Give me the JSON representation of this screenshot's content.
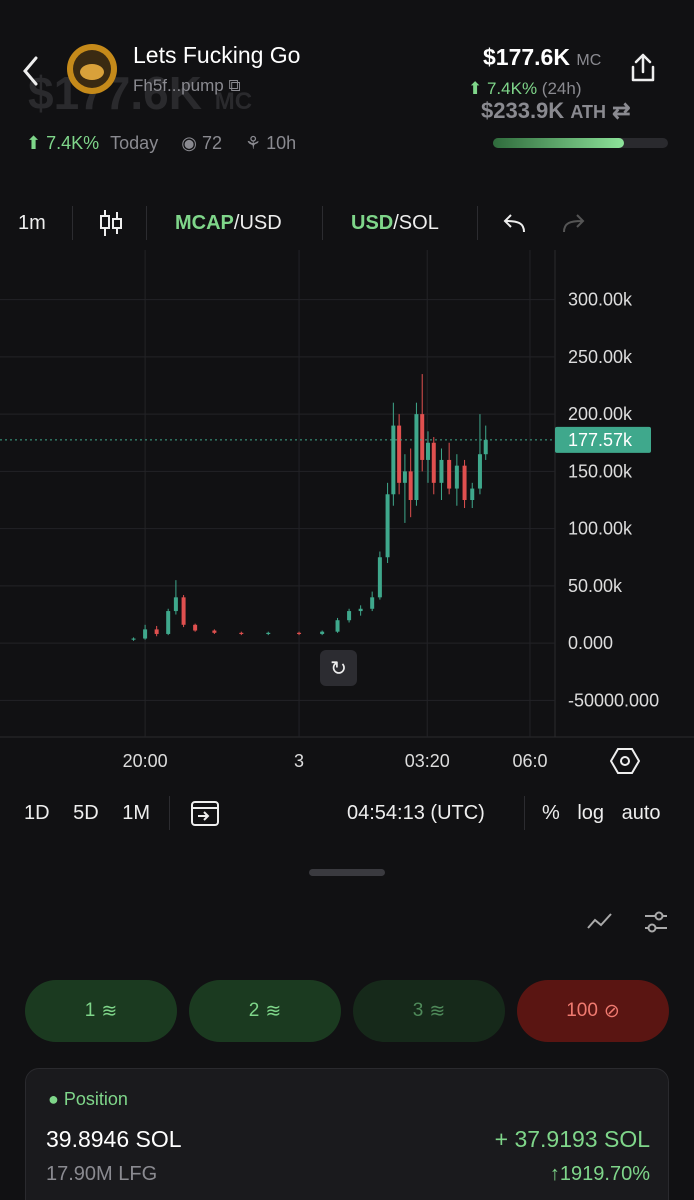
{
  "header": {
    "name": "Lets Fucking Go",
    "address": "Fh5f...pump",
    "mc": "$177.6K",
    "mc_unit": "MC",
    "change": "7.4K%",
    "change_period": "(24h)",
    "ath": "$233.9K",
    "ath_unit": "ATH",
    "ath_progress_percent": 75
  },
  "stats": {
    "today_change": "7.4K%",
    "today_label": "Today",
    "holders": "72",
    "age": "10h"
  },
  "toolbar": {
    "interval": "1m",
    "mcap": "MCAP",
    "mcap_unit": "/USD",
    "usd": "USD",
    "sol": "/SOL"
  },
  "chart_data": {
    "type": "candlestick",
    "x": [
      -0.3,
      0.0,
      0.3,
      0.6,
      0.8,
      1.0,
      1.3,
      1.8,
      2.5,
      3.2,
      4.0,
      4.6,
      5.0,
      5.3,
      5.6,
      5.9,
      6.1,
      6.3,
      6.45,
      6.6,
      6.75,
      6.9,
      7.05,
      7.2,
      7.35,
      7.5,
      7.7,
      7.9,
      8.1,
      8.3,
      8.5,
      8.7,
      8.85
    ],
    "open": [
      3000,
      4000,
      12000,
      8000,
      28000,
      40000,
      16000,
      11000,
      9000,
      8000,
      9000,
      8000,
      10000,
      20000,
      28000,
      30000,
      40000,
      75000,
      130000,
      190000,
      140000,
      150000,
      125000,
      200000,
      160000,
      175000,
      140000,
      160000,
      135000,
      155000,
      125000,
      135000,
      165000
    ],
    "high": [
      5000,
      16000,
      15000,
      30000,
      55000,
      42000,
      17000,
      12000,
      10000,
      10000,
      10000,
      11000,
      22000,
      30000,
      33000,
      45000,
      80000,
      140000,
      210000,
      200000,
      165000,
      170000,
      210000,
      235000,
      185000,
      180000,
      170000,
      175000,
      165000,
      160000,
      140000,
      200000,
      190000
    ],
    "low": [
      2000,
      3000,
      6000,
      7000,
      25000,
      14000,
      10000,
      8000,
      7000,
      7000,
      7000,
      7000,
      9000,
      18000,
      24000,
      28000,
      38000,
      70000,
      120000,
      130000,
      105000,
      110000,
      120000,
      150000,
      140000,
      130000,
      125000,
      130000,
      120000,
      118000,
      118000,
      130000,
      160000
    ],
    "close": [
      4000,
      12000,
      8000,
      28000,
      40000,
      16000,
      11000,
      9000,
      8000,
      9000,
      8000,
      10000,
      20000,
      28000,
      30000,
      40000,
      75000,
      130000,
      190000,
      140000,
      150000,
      125000,
      200000,
      160000,
      175000,
      140000,
      160000,
      135000,
      155000,
      125000,
      135000,
      165000,
      177570
    ],
    "up_color": "#3fa88c",
    "down_color": "#e0504f",
    "ylim": [
      -82000,
      339000
    ],
    "yticks": [
      {
        "value": 300000,
        "label": "300.00k"
      },
      {
        "value": 250000,
        "label": "250.00k"
      },
      {
        "value": 200000,
        "label": "200.00k"
      },
      {
        "value": 150000,
        "label": "150.00k"
      },
      {
        "value": 100000,
        "label": "100.00k"
      },
      {
        "value": 50000,
        "label": "50.00k"
      },
      {
        "value": 0,
        "label": "0.000"
      },
      {
        "value": -50000,
        "label": "-50000.000"
      }
    ],
    "xlim": [
      -3.77,
      10.65
    ],
    "xticks": [
      {
        "value": 0,
        "label": "20:00"
      },
      {
        "value": 4,
        "label": "3"
      },
      {
        "value": 7.33,
        "label": "03:20"
      },
      {
        "value": 10,
        "label": "06:0"
      }
    ],
    "last_price": {
      "value": 177570,
      "label": "177.57k"
    },
    "grid": true
  },
  "range_bar": {
    "ranges": [
      "1D",
      "5D",
      "1M"
    ],
    "time": "04:54:13 (UTC)",
    "options": [
      "%",
      "log",
      "auto"
    ]
  },
  "buy_buttons": [
    "1",
    "2",
    "3",
    "100"
  ],
  "position": {
    "title": "Position",
    "amount": "39.8946 SOL",
    "pnl": "+ 37.9193 SOL",
    "tokens": "17.90M LFG",
    "pnl_percent": "↑1919.70%"
  }
}
